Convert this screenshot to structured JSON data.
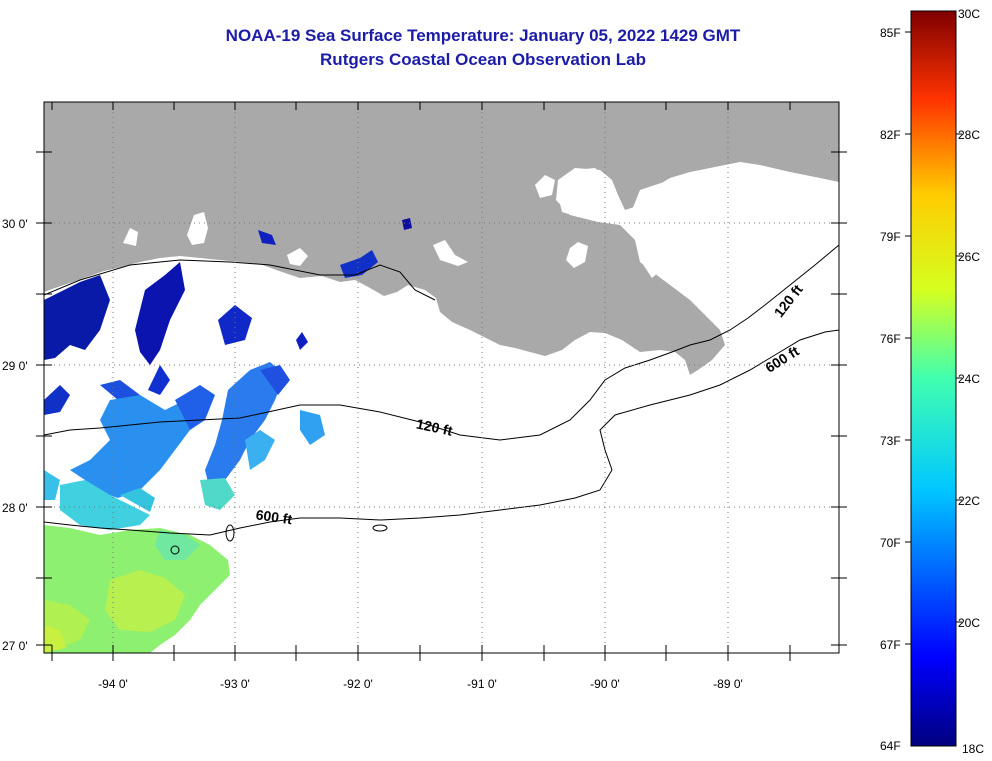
{
  "header": {
    "title": "NOAA-19 Sea Surface Temperature:  January 05, 2022 1429 GMT",
    "subtitle": "Rutgers Coastal Ocean Observation Lab"
  },
  "map": {
    "lat_labels": [
      "30 0'",
      "29 0'",
      "28 0'",
      "27 0'"
    ],
    "lon_labels": [
      "-94 0'",
      "-93 0'",
      "-92 0'",
      "-91 0'",
      "-90 0'",
      "-89 0'"
    ],
    "lat_range": [
      26.95,
      30.85
    ],
    "lon_range": [
      -94.55,
      -88.05
    ],
    "colors": {
      "land": "#a9a9a9",
      "frame": "#000000",
      "grid": "#777777"
    },
    "contours": [
      {
        "label": "120 ft"
      },
      {
        "label": "600 ft"
      }
    ]
  },
  "colorbar": {
    "fahrenheit_labels": [
      "85F",
      "82F",
      "79F",
      "76F",
      "73F",
      "70F",
      "67F",
      "64F"
    ],
    "celsius_labels": [
      "30C",
      "28C",
      "26C",
      "24C",
      "22C",
      "20C",
      "18C"
    ],
    "celsius_range": [
      18,
      30
    ],
    "fahrenheit_range": [
      64,
      85
    ]
  }
}
